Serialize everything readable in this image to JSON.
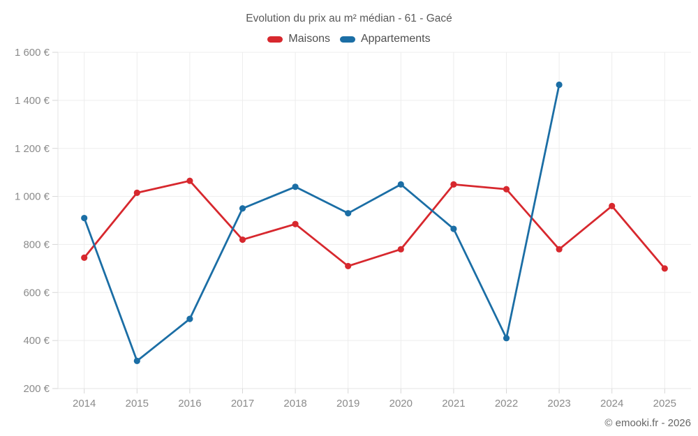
{
  "title": "Evolution du prix au m² médian - 61 - Gacé",
  "footer": "© emooki.fr - 2026",
  "legend": [
    {
      "label": "Maisons",
      "color": "#d7282e"
    },
    {
      "label": "Appartements",
      "color": "#1b6ea5"
    }
  ],
  "chart_data": {
    "type": "line",
    "title": "Evolution du prix au m² médian - 61 - Gacé",
    "x": [
      2014,
      2015,
      2016,
      2017,
      2018,
      2019,
      2020,
      2021,
      2022,
      2023,
      2024,
      2025
    ],
    "series": [
      {
        "name": "Maisons",
        "color": "#d7282e",
        "values": [
          745,
          1015,
          1065,
          820,
          885,
          710,
          780,
          1050,
          1030,
          780,
          960,
          700
        ]
      },
      {
        "name": "Appartements",
        "color": "#1b6ea5",
        "values": [
          910,
          315,
          490,
          950,
          1040,
          930,
          1050,
          865,
          410,
          1465,
          null,
          null
        ]
      }
    ],
    "ylim": [
      200,
      1600
    ],
    "ytick_step": 200,
    "ytick_suffix": " €",
    "grid": true,
    "legend_position": "top",
    "colors": {
      "gridline": "#ededed",
      "axis_line": "#e4e4e4",
      "tick": "#d6d6d6",
      "tick_text": "#8b8b8b"
    }
  }
}
